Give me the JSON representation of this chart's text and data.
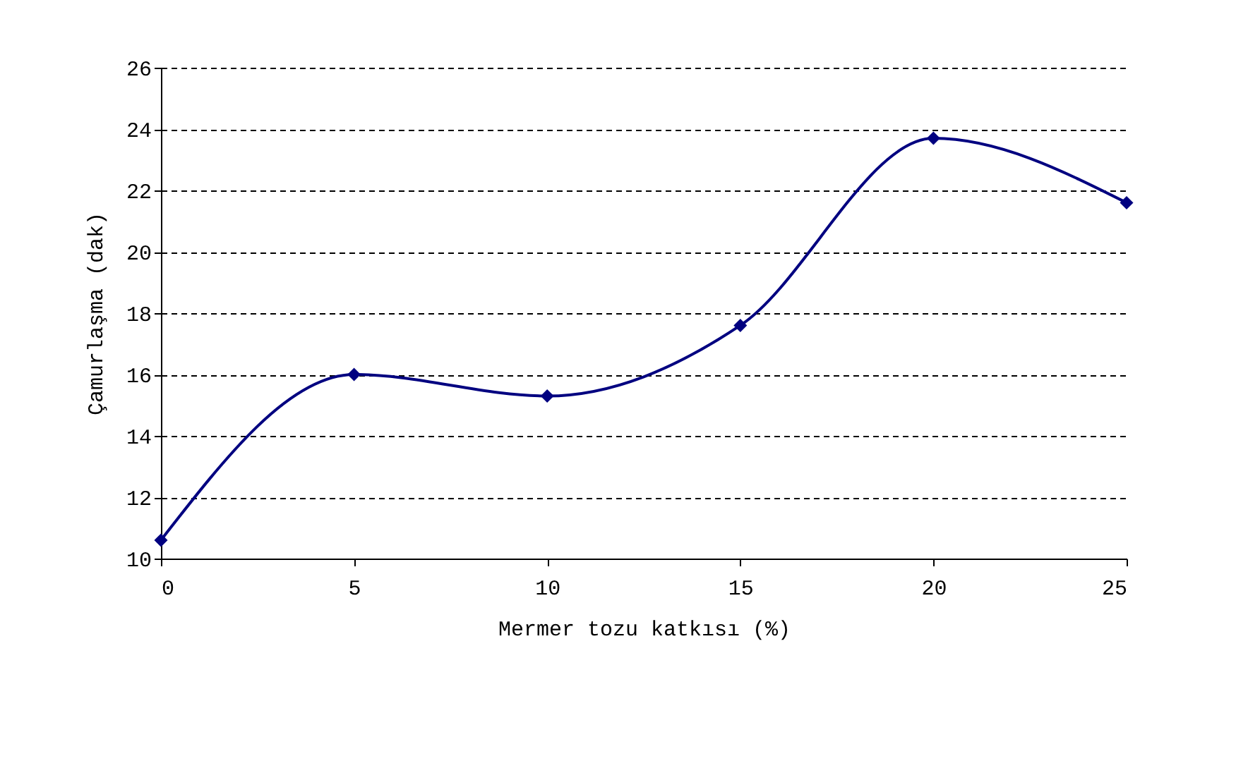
{
  "chart_data": {
    "type": "line",
    "xlabel": "Mermer tozu katkısı (%)",
    "ylabel": "Çamurlaşma (dak)",
    "x": [
      0,
      5,
      10,
      15,
      20,
      25
    ],
    "series": [
      {
        "color": "#000080",
        "values": [
          10.6,
          16,
          15.3,
          17.6,
          23.7,
          21.6
        ]
      }
    ],
    "xlim": [
      0,
      25
    ],
    "xticks": [
      0,
      5,
      10,
      15,
      20,
      25
    ],
    "ylim": [
      10,
      26
    ],
    "yticks": [
      10,
      12,
      14,
      16,
      18,
      20,
      22,
      24,
      26
    ],
    "grid": "y",
    "marker": "diamond",
    "line_style": "solid",
    "legend": false
  }
}
